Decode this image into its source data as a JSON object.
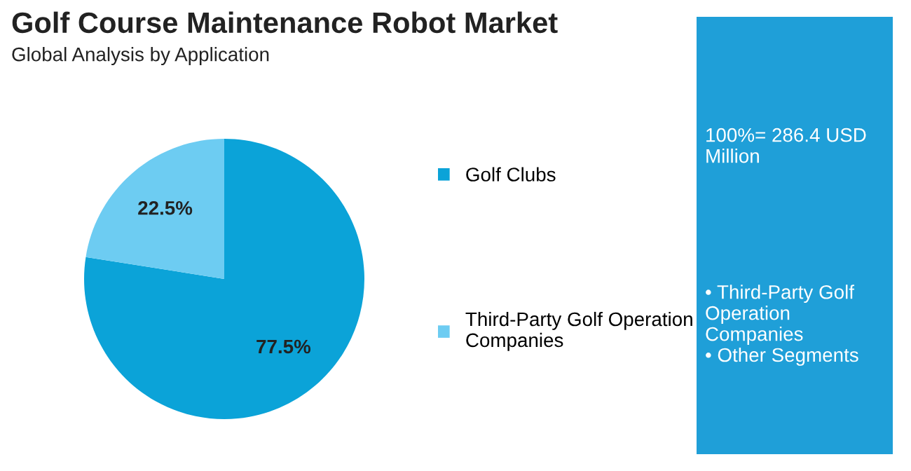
{
  "chart_data": {
    "type": "pie",
    "title": "Golf Course Maintenance Robot Market",
    "subtitle": "Global Analysis by Application",
    "categories": [
      "Golf Clubs",
      "Third-Party Golf Operation Companies"
    ],
    "values": [
      77.5,
      22.5
    ],
    "colors": [
      "#0ba3d8",
      "#6dccf2"
    ],
    "value_labels": [
      "77.5%",
      "22.5%"
    ],
    "legend": "right",
    "annotations": [
      "100%= 286.4 USD Million",
      "• Third-Party Golf Operation Companies\n• Other Segments"
    ]
  }
}
